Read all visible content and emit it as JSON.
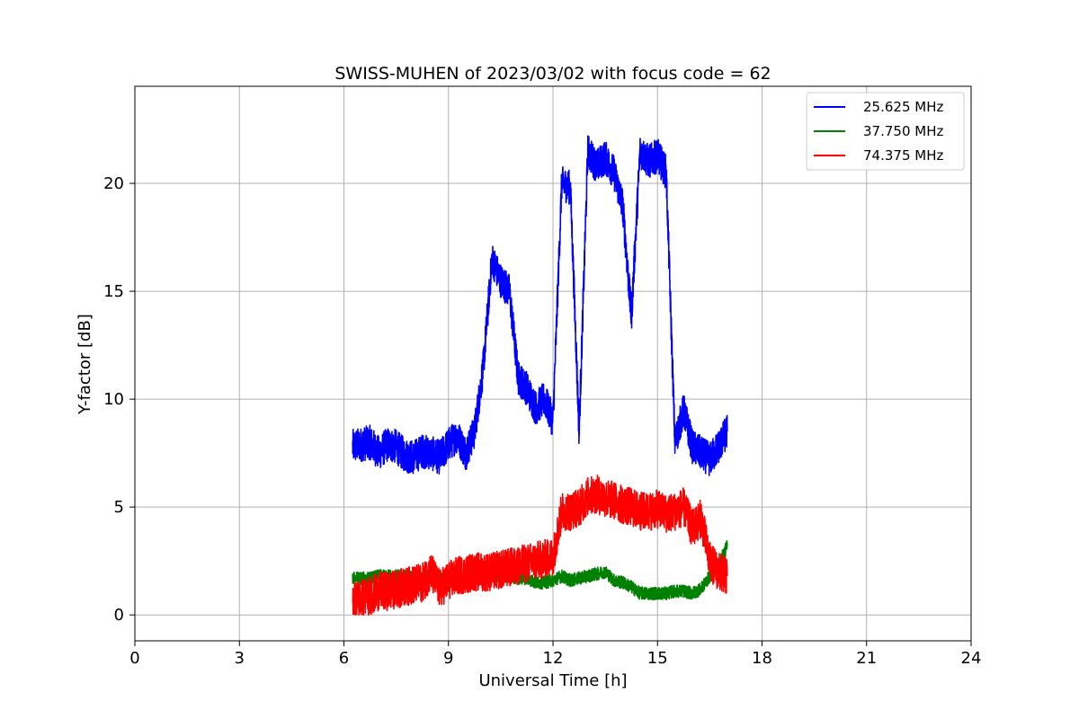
{
  "chart_data": {
    "type": "line",
    "title": "SWISS-MUHEN of 2023/03/02 with focus code = 62",
    "xlabel": "Universal Time [h]",
    "ylabel": "Y-factor [dB]",
    "xlim": [
      0,
      24
    ],
    "ylim": [
      -1.2,
      24.5
    ],
    "xticks": [
      0,
      3,
      6,
      9,
      12,
      15,
      18,
      21,
      24
    ],
    "yticks": [
      0,
      5,
      10,
      15,
      20
    ],
    "grid": true,
    "legend_position": "top-right",
    "x": [
      6.25,
      6.5,
      6.75,
      7.0,
      7.25,
      7.5,
      7.75,
      8.0,
      8.25,
      8.5,
      8.75,
      9.0,
      9.25,
      9.5,
      9.75,
      10.0,
      10.25,
      10.5,
      10.75,
      11.0,
      11.25,
      11.5,
      11.75,
      12.0,
      12.25,
      12.5,
      12.75,
      13.0,
      13.25,
      13.5,
      13.75,
      14.0,
      14.25,
      14.5,
      14.75,
      15.0,
      15.25,
      15.5,
      15.75,
      16.0,
      16.25,
      16.5,
      16.75,
      17.0
    ],
    "series": [
      {
        "name": "25.625 MHz",
        "color": "#0000ff",
        "values": [
          7.8,
          7.9,
          8.0,
          7.5,
          7.9,
          7.8,
          7.4,
          7.3,
          7.6,
          7.5,
          7.3,
          7.9,
          8.3,
          7.5,
          8.5,
          11.5,
          16.5,
          15.5,
          15.0,
          11.0,
          10.5,
          9.6,
          10.0,
          9.0,
          20.0,
          19.8,
          8.5,
          21.5,
          20.8,
          21.2,
          20.5,
          19.0,
          13.8,
          21.5,
          21.0,
          21.3,
          20.5,
          8.0,
          9.5,
          7.8,
          7.5,
          7.2,
          7.8,
          8.5
        ],
        "noise": 0.8
      },
      {
        "name": "37.750 MHz",
        "color": "#008000",
        "values": [
          1.7,
          1.7,
          1.7,
          1.8,
          1.8,
          1.8,
          1.8,
          1.7,
          1.7,
          1.8,
          1.7,
          1.7,
          1.7,
          1.7,
          1.7,
          1.8,
          1.8,
          1.8,
          1.8,
          1.7,
          1.7,
          1.5,
          1.5,
          1.6,
          1.8,
          1.6,
          1.7,
          1.8,
          1.9,
          2.0,
          1.6,
          1.5,
          1.3,
          1.0,
          1.0,
          1.0,
          1.0,
          1.1,
          1.1,
          1.0,
          1.2,
          1.8,
          2.3,
          3.2
        ],
        "noise": 0.3
      },
      {
        "name": "74.375 MHz",
        "color": "#ff0000",
        "values": [
          0.7,
          0.8,
          0.9,
          1.1,
          1.1,
          1.2,
          1.3,
          1.4,
          1.5,
          2.0,
          1.2,
          1.6,
          1.8,
          1.9,
          2.0,
          2.0,
          2.0,
          2.1,
          2.2,
          2.3,
          2.4,
          2.5,
          2.6,
          2.7,
          4.8,
          4.8,
          5.0,
          5.5,
          5.6,
          5.4,
          5.3,
          5.1,
          5.0,
          4.8,
          4.8,
          4.9,
          4.7,
          4.8,
          5.0,
          4.0,
          4.5,
          2.5,
          2.0,
          1.8
        ],
        "noise": 0.9
      }
    ]
  }
}
